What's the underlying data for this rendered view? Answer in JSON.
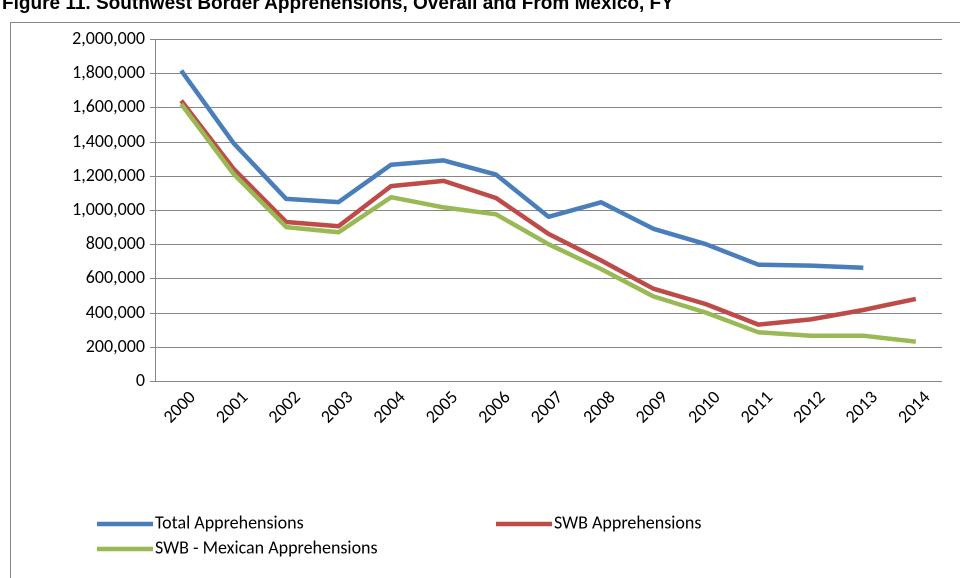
{
  "chart_data": {
    "type": "line",
    "title": "Figure 11. Southwest Border Apprehensions, Overall and From Mexico, FY",
    "categories": [
      "2000",
      "2001",
      "2002",
      "2003",
      "2004",
      "2005",
      "2006",
      "2007",
      "2008",
      "2009",
      "2010",
      "2011",
      "2012",
      "2013",
      "2014"
    ],
    "series": [
      {
        "name": "Total Apprehensions",
        "color": "#4a7ebb",
        "values": [
          1815000,
          1390000,
          1065000,
          1046000,
          1265000,
          1290000,
          1207000,
          960000,
          1045000,
          890000,
          800000,
          680000,
          675000,
          662000,
          null
        ]
      },
      {
        "name": "SWB Apprehensions",
        "color": "#be4b48",
        "values": [
          1640000,
          1240000,
          930000,
          905000,
          1140000,
          1170000,
          1070000,
          860000,
          705000,
          540000,
          450000,
          330000,
          360000,
          415000,
          480000
        ]
      },
      {
        "name": "SWB - Mexican Apprehensions",
        "color": "#98b954",
        "values": [
          1620000,
          1210000,
          900000,
          870000,
          1075000,
          1015000,
          975000,
          800000,
          655000,
          495000,
          400000,
          285000,
          265000,
          265000,
          230000
        ]
      }
    ],
    "ylim": [
      0,
      2000000
    ],
    "yticks": [
      0,
      {
        "value": 200000,
        "label": "200,000"
      },
      {
        "value": 400000,
        "label": "400,000"
      },
      {
        "value": 600000,
        "label": "600,000"
      },
      {
        "value": 800000,
        "label": "800,000"
      },
      {
        "value": 1000000,
        "label": "1,000,000"
      },
      {
        "value": 1200000,
        "label": "1,200,000"
      },
      {
        "value": 1400000,
        "label": "1,400,000"
      },
      {
        "value": 1600000,
        "label": "1,600,000"
      },
      {
        "value": 1800000,
        "label": "1,800,000"
      },
      {
        "value": 2000000,
        "label": "2,000,000"
      }
    ],
    "grid": true
  }
}
